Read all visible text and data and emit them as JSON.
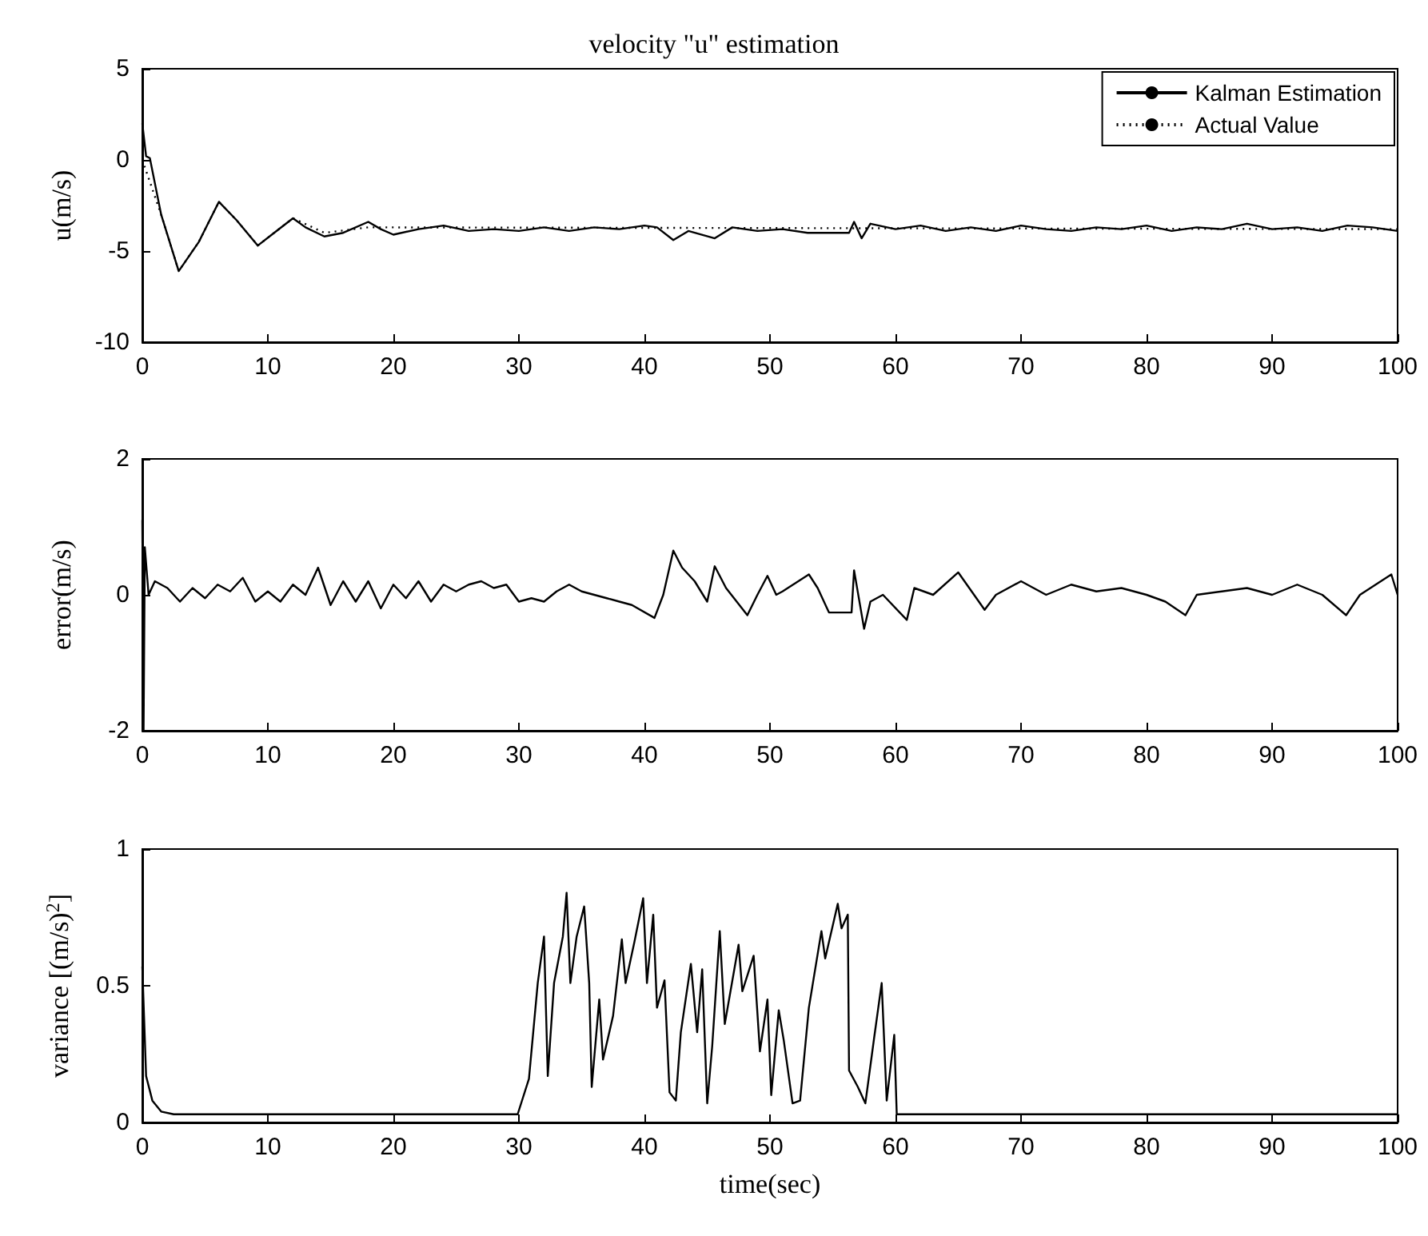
{
  "chart_data": [
    {
      "type": "line",
      "title": "velocity \"u\" estimation",
      "ylabel": "u(m/s)",
      "xlim": [
        0,
        100
      ],
      "xticks": [
        0,
        10,
        20,
        30,
        40,
        50,
        60,
        70,
        80,
        90,
        100
      ],
      "ylim": [
        -10,
        5
      ],
      "yticks": [
        -10,
        -5,
        0,
        5
      ],
      "grid": false,
      "legend": "top right",
      "marker": "none",
      "series": [
        {
          "name": "Kalman Estimation",
          "color": "#000000",
          "line_style": "solid",
          "x": [
            0,
            0.3,
            0.6,
            1.5,
            2.9,
            4.5,
            6.1,
            7.5,
            9.2,
            10.5,
            12,
            13,
            14.5,
            16,
            18,
            19,
            20,
            22,
            24,
            26,
            28,
            30,
            32,
            34,
            36,
            38,
            40,
            41,
            42.3,
            43.5,
            45.6,
            47,
            49,
            51,
            53,
            56.3,
            56.7,
            57.3,
            58,
            60,
            62,
            64,
            66,
            68,
            70,
            72,
            74,
            76,
            78,
            80,
            82,
            84,
            86,
            88,
            90,
            92,
            94,
            96,
            98,
            100
          ],
          "values": [
            2,
            0.2,
            0.1,
            -3,
            -6.1,
            -4.5,
            -2.3,
            -3.3,
            -4.7,
            -4,
            -3.2,
            -3.7,
            -4.2,
            -4,
            -3.4,
            -3.8,
            -4.1,
            -3.8,
            -3.6,
            -3.9,
            -3.8,
            -3.9,
            -3.7,
            -3.9,
            -3.7,
            -3.8,
            -3.6,
            -3.7,
            -4.4,
            -3.9,
            -4.3,
            -3.7,
            -3.9,
            -3.8,
            -4,
            -4,
            -3.4,
            -4.3,
            -3.5,
            -3.8,
            -3.6,
            -3.9,
            -3.7,
            -3.9,
            -3.6,
            -3.8,
            -3.9,
            -3.7,
            -3.8,
            -3.6,
            -3.9,
            -3.7,
            -3.8,
            -3.5,
            -3.8,
            -3.7,
            -3.9,
            -3.6,
            -3.7,
            -3.9
          ]
        },
        {
          "name": "Actual Value",
          "color": "#000000",
          "line_style": "dotted",
          "x": [
            0,
            1.5,
            2.9,
            4.5,
            6.1,
            7.5,
            9.2,
            10.5,
            12,
            14.5,
            18,
            100
          ],
          "values": [
            0,
            -3,
            -6.1,
            -4.5,
            -2.3,
            -3.3,
            -4.7,
            -4,
            -3.2,
            -4,
            -3.7,
            -3.8
          ]
        }
      ]
    },
    {
      "type": "line",
      "ylabel": "error(m/s)",
      "xlim": [
        0,
        100
      ],
      "xticks": [
        0,
        10,
        20,
        30,
        40,
        50,
        60,
        70,
        80,
        90,
        100
      ],
      "ylim": [
        -2,
        2
      ],
      "yticks": [
        -2,
        0,
        2
      ],
      "grid": false,
      "marker": "none",
      "series": [
        {
          "color": "#000000",
          "line_style": "solid",
          "x": [
            0,
            0.1,
            0.2,
            0.5,
            1,
            2,
            3,
            4,
            5,
            6,
            7,
            8,
            9,
            10,
            11,
            12,
            13,
            14,
            15,
            16,
            17,
            18,
            19,
            20,
            21,
            22,
            23,
            24,
            25,
            26,
            27,
            28,
            29,
            30,
            31,
            32,
            33,
            34,
            35,
            36,
            37,
            38,
            39,
            40.8,
            41.5,
            42.3,
            43,
            44,
            45,
            45.6,
            46.5,
            48.2,
            49,
            49.8,
            50.5,
            51,
            53.1,
            53.8,
            54.7,
            56.5,
            56.7,
            57.5,
            58,
            59,
            60.9,
            61.5,
            63,
            65,
            67.1,
            68,
            70,
            72,
            74,
            76,
            78,
            80,
            81.5,
            83.1,
            84,
            86,
            88,
            90,
            92,
            94,
            95.9,
            97,
            99.5,
            100
          ],
          "values": [
            1.1,
            -2,
            0.7,
            0,
            0.2,
            0.1,
            -0.1,
            0.1,
            -0.05,
            0.15,
            0.05,
            0.25,
            -0.1,
            0.05,
            -0.1,
            0.15,
            0,
            0.4,
            -0.15,
            0.2,
            -0.1,
            0.2,
            -0.2,
            0.15,
            -0.05,
            0.2,
            -0.1,
            0.15,
            0.05,
            0.15,
            0.2,
            0.1,
            0.15,
            -0.1,
            -0.05,
            -0.1,
            0.05,
            0.15,
            0.05,
            0,
            -0.05,
            -0.1,
            -0.15,
            -0.34,
            0,
            0.65,
            0.4,
            0.2,
            -0.1,
            0.42,
            0.1,
            -0.3,
            0,
            0.28,
            0,
            0.05,
            0.3,
            0.1,
            -0.26,
            -0.26,
            0.36,
            -0.5,
            -0.1,
            0,
            -0.37,
            0.1,
            0,
            0.33,
            -0.22,
            0,
            0.2,
            0,
            0.15,
            0.05,
            0.1,
            0,
            -0.1,
            -0.3,
            0,
            0.05,
            0.1,
            0,
            0.15,
            0,
            -0.3,
            0,
            0.3,
            0
          ]
        }
      ]
    },
    {
      "type": "line",
      "ylabel": "variance [(m/s)$^{2}$]",
      "xlabel": "time(sec)",
      "xlim": [
        0,
        100
      ],
      "xticks": [
        0,
        10,
        20,
        30,
        40,
        50,
        60,
        70,
        80,
        90,
        100
      ],
      "ylim": [
        0,
        1
      ],
      "yticks": [
        0,
        0.5,
        1
      ],
      "grid": false,
      "marker": "none",
      "series": [
        {
          "color": "#000000",
          "line_style": "solid",
          "x": [
            0,
            0.3,
            0.8,
            1.5,
            2.5,
            29.9,
            30.8,
            31.5,
            32,
            32.3,
            32.8,
            33.5,
            33.8,
            34.1,
            34.6,
            35.2,
            35.6,
            35.8,
            36.4,
            36.7,
            37.5,
            38.2,
            38.5,
            39.2,
            39.9,
            40.2,
            40.7,
            41,
            41.6,
            42,
            42.5,
            42.9,
            43.7,
            44.2,
            44.6,
            45,
            45.4,
            46,
            46.4,
            47.5,
            47.8,
            48.7,
            49.2,
            49.8,
            50.1,
            50.7,
            51.1,
            51.8,
            52.4,
            53.1,
            54.1,
            54.4,
            55.4,
            55.7,
            56.2,
            56.3,
            57,
            57.6,
            58.3,
            58.9,
            59.3,
            59.9,
            60.1,
            60.6,
            100
          ],
          "values": [
            0.57,
            0.17,
            0.08,
            0.04,
            0.03,
            0.03,
            0.16,
            0.51,
            0.68,
            0.17,
            0.51,
            0.68,
            0.84,
            0.51,
            0.68,
            0.79,
            0.51,
            0.13,
            0.45,
            0.23,
            0.39,
            0.67,
            0.51,
            0.66,
            0.82,
            0.51,
            0.76,
            0.42,
            0.52,
            0.11,
            0.08,
            0.33,
            0.58,
            0.33,
            0.56,
            0.07,
            0.28,
            0.7,
            0.36,
            0.65,
            0.48,
            0.61,
            0.26,
            0.45,
            0.1,
            0.41,
            0.3,
            0.07,
            0.08,
            0.42,
            0.7,
            0.6,
            0.8,
            0.71,
            0.76,
            0.19,
            0.13,
            0.07,
            0.31,
            0.51,
            0.08,
            0.32,
            0.03,
            0.03,
            0.03
          ]
        }
      ]
    }
  ]
}
